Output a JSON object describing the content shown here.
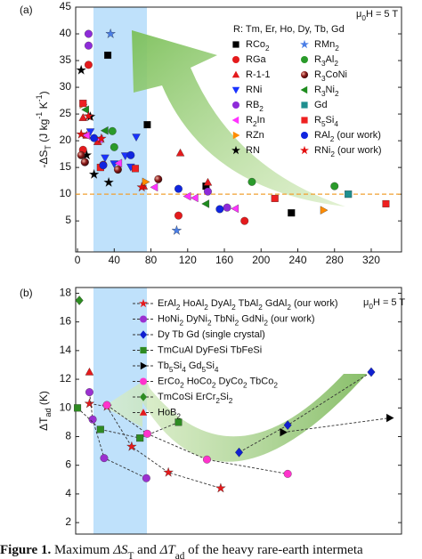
{
  "chart_data": [
    {
      "type": "scatter",
      "panel_label": "(a)",
      "annotation": "μ0H = 5 T",
      "legend_title": "R: Tm, Er, Ho, Dy, Tb, Gd",
      "legend_columns": 2,
      "y_label": [
        {
          "text": "-ΔS"
        },
        {
          "text": "T",
          "style": "sub"
        },
        {
          "text": " (J kg"
        },
        {
          "text": "-1",
          "style": "sup"
        },
        {
          "text": " K"
        },
        {
          "text": "-1",
          "style": "sup"
        },
        {
          "text": ")"
        }
      ],
      "xlim": [
        -2,
        353
      ],
      "ylim": [
        -0.8,
        45
      ],
      "xticks": [
        0,
        40,
        80,
        120,
        160,
        200,
        240,
        280,
        320
      ],
      "yticks": [
        5,
        10,
        15,
        20,
        25,
        30,
        35,
        40,
        45
      ],
      "hline": 10,
      "hline_color": "#f0a030",
      "series": [
        {
          "name": "RCo2",
          "marker": "square",
          "color": "#000000",
          "x": [
            33,
            76,
            140,
            233
          ],
          "y": [
            36,
            23,
            11.5,
            6.5
          ]
        },
        {
          "name": "RGa",
          "marker": "circle",
          "color": "#e41a1c",
          "x": [
            12,
            6,
            28,
            110,
            182
          ],
          "y": [
            34.2,
            18.3,
            15.5,
            6,
            5
          ]
        },
        {
          "name": "R-1-1",
          "marker": "triangle-up",
          "color": "#e41a1c",
          "x": [
            6,
            10,
            22,
            72,
            112,
            142
          ],
          "y": [
            24.3,
            21,
            19.8,
            11.5,
            17.7,
            12.2
          ]
        },
        {
          "name": "RNi",
          "marker": "triangle-down",
          "color": "#1a33ff",
          "x": [
            14,
            30,
            52,
            64,
            40,
            58
          ],
          "y": [
            21.7,
            16.8,
            17.2,
            20.7,
            15.7,
            15.1
          ]
        },
        {
          "name": "RB2",
          "marker": "circle",
          "color": "#8e2bd9",
          "x": [
            12,
            12,
            8,
            142,
            163
          ],
          "y": [
            40,
            37.8,
            16,
            10.5,
            7.5
          ]
        },
        {
          "name": "R2In",
          "marker": "triangle-left",
          "color": "#ff33ff",
          "x": [
            10,
            24,
            45,
            84,
            120,
            128,
            172
          ],
          "y": [
            21,
            20.3,
            15.8,
            11.3,
            9.6,
            9.3,
            7.3
          ]
        },
        {
          "name": "RZn",
          "marker": "triangle-right",
          "color": "#ff8c00",
          "x": [
            6,
            74,
            268
          ],
          "y": [
            26.8,
            12.3,
            7
          ]
        },
        {
          "name": "RN",
          "marker": "star",
          "color": "#000000",
          "x": [
            4,
            14,
            18,
            34,
            10
          ],
          "y": [
            33.2,
            24.5,
            13.7,
            12.2,
            17.3
          ]
        },
        {
          "name": "RMn2",
          "marker": "star",
          "color": "#4a7ee6",
          "x": [
            36,
            108
          ],
          "y": [
            40,
            3.2
          ]
        },
        {
          "name": "R3Al2",
          "marker": "circle",
          "color": "#2a9a2a",
          "x": [
            38,
            40,
            190,
            280
          ],
          "y": [
            21.8,
            18.8,
            12.3,
            11.5
          ]
        },
        {
          "name": "R3CoNi",
          "marker": "sphere",
          "color": "#8b1a1a",
          "x": [
            4,
            8,
            44,
            88
          ],
          "y": [
            17.3,
            16,
            14.6,
            12.8
          ]
        },
        {
          "name": "R3Ni2",
          "marker": "triangle-left",
          "color": "#1e8c1e",
          "x": [
            9,
            30,
            140
          ],
          "y": [
            25.8,
            21.9,
            8.2
          ]
        },
        {
          "name": "Gd",
          "marker": "square",
          "color": "#1f8f8f",
          "x": [
            295
          ],
          "y": [
            10
          ]
        },
        {
          "name": "R5Si4",
          "marker": "square",
          "color": "#ee2020",
          "x": [
            6,
            25,
            63,
            215,
            336
          ],
          "y": [
            27,
            15,
            14.8,
            9.2,
            8.2
          ]
        },
        {
          "name": "RAl2 (our work)",
          "marker": "circle",
          "color": "#1025e0",
          "x": [
            18,
            28,
            58,
            110,
            155
          ],
          "y": [
            20.5,
            15.4,
            17.3,
            11,
            7.2
          ]
        },
        {
          "name": "RNi2 (our work)",
          "marker": "star",
          "color": "#e41010",
          "x": [
            4,
            12,
            26,
            70
          ],
          "y": [
            21.2,
            24.6,
            20.4,
            11.3
          ]
        }
      ]
    },
    {
      "type": "scatter",
      "panel_label": "(b)",
      "annotation": "μ0H = 5 T",
      "legend_columns": 1,
      "connect": true,
      "y_label": [
        {
          "text": "ΔT"
        },
        {
          "text": "ad",
          "style": "sub"
        },
        {
          "text": " (K)"
        }
      ],
      "xlim": [
        -2,
        353
      ],
      "ylim": [
        1.2,
        18.4
      ],
      "yticks": [
        2,
        4,
        6,
        8,
        10,
        12,
        14,
        16,
        18
      ],
      "series": [
        {
          "name": "ErAl2 HoAl2 DyAl2 TbAl2 GdAl2 (our work)",
          "marker": "star",
          "color": "#e41a1c",
          "x": [
            13,
            32,
            59,
            99,
            156
          ],
          "y": [
            10.3,
            10.1,
            7.3,
            5.5,
            4.4
          ]
        },
        {
          "name": "HoNi2 DyNi2 TbNi2 GdNi2 (our work)",
          "marker": "circle",
          "color": "#9b30d0",
          "x": [
            13,
            16.5,
            29,
            75
          ],
          "y": [
            11.1,
            9.2,
            6.5,
            5.1
          ]
        },
        {
          "name": "Dy Tb Gd (single crystal)",
          "marker": "diamond",
          "color": "#1020d0",
          "x": [
            176,
            229,
            320
          ],
          "y": [
            6.9,
            8.8,
            12.5
          ]
        },
        {
          "name": "TmCuAl DyFeSi TbFeSi",
          "marker": "square",
          "color": "#2e8b22",
          "x": [
            0,
            25,
            68,
            110
          ],
          "y": [
            10,
            8.5,
            7.9,
            9.0
          ]
        },
        {
          "name": "Tb5Si4 Gd5Si4",
          "marker": "triangle-right",
          "color": "#000000",
          "x": [
            224,
            340
          ],
          "y": [
            8.3,
            9.3
          ]
        },
        {
          "name": "ErCo2 HoCo2 DyCo2 TbCo2",
          "marker": "circle",
          "color": "#ff33cc",
          "x": [
            32,
            76,
            141,
            229
          ],
          "y": [
            10.2,
            8.2,
            6.4,
            5.4
          ]
        },
        {
          "name": "TmCoSi ErCr2Si2",
          "marker": "diamond",
          "color": "#2e8b22",
          "x": [
            2
          ],
          "y": [
            17.5
          ]
        },
        {
          "name": "HoB2",
          "marker": "triangle-up",
          "color": "#e41a1c",
          "x": [
            13
          ],
          "y": [
            12.5
          ]
        }
      ]
    }
  ],
  "caption": [
    {
      "text": "Figure 1.",
      "style": "bold"
    },
    {
      "text": " Maximum "
    },
    {
      "text": "ΔS",
      "style": "italic"
    },
    {
      "text": "T",
      "style": "sub"
    },
    {
      "text": " and "
    },
    {
      "text": "ΔT",
      "style": "italic"
    },
    {
      "text": "ad",
      "style": "sub"
    },
    {
      "text": " of the heavy rare-earth intermeta"
    }
  ]
}
